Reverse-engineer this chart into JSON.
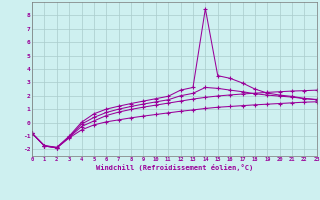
{
  "xlabel": "Windchill (Refroidissement éolien,°C)",
  "bg_color": "#cef0f0",
  "grid_color": "#aacccc",
  "line_color": "#990099",
  "xlim": [
    0,
    23
  ],
  "ylim": [
    -2.5,
    9.0
  ],
  "xticks": [
    0,
    1,
    2,
    3,
    4,
    5,
    6,
    7,
    8,
    9,
    10,
    11,
    12,
    13,
    14,
    15,
    16,
    17,
    18,
    19,
    20,
    21,
    22,
    23
  ],
  "yticks": [
    -2,
    -1,
    0,
    1,
    2,
    3,
    4,
    5,
    6,
    7,
    8
  ],
  "series": [
    [
      -0.8,
      -1.75,
      -1.9,
      -1.15,
      -0.55,
      -0.18,
      0.05,
      0.2,
      0.35,
      0.48,
      0.6,
      0.72,
      0.84,
      0.94,
      1.05,
      1.14,
      1.2,
      1.26,
      1.32,
      1.37,
      1.42,
      1.47,
      1.52,
      1.55
    ],
    [
      -0.8,
      -1.75,
      -1.9,
      -1.1,
      -0.3,
      0.12,
      0.52,
      0.78,
      0.98,
      1.15,
      1.3,
      1.45,
      1.6,
      1.75,
      1.88,
      1.98,
      2.06,
      2.13,
      2.19,
      2.25,
      2.3,
      2.35,
      2.38,
      2.42
    ],
    [
      -0.8,
      -1.72,
      -1.85,
      -1.02,
      0.02,
      0.65,
      1.0,
      1.22,
      1.42,
      1.6,
      1.78,
      1.96,
      2.42,
      2.62,
      8.5,
      3.5,
      3.3,
      2.95,
      2.5,
      2.2,
      2.05,
      1.95,
      1.8,
      1.72
    ],
    [
      -0.8,
      -1.73,
      -1.87,
      -1.08,
      -0.12,
      0.38,
      0.75,
      1.0,
      1.2,
      1.38,
      1.54,
      1.7,
      2.0,
      2.18,
      2.62,
      2.55,
      2.42,
      2.3,
      2.15,
      2.05,
      1.97,
      1.9,
      1.78,
      1.7
    ]
  ]
}
